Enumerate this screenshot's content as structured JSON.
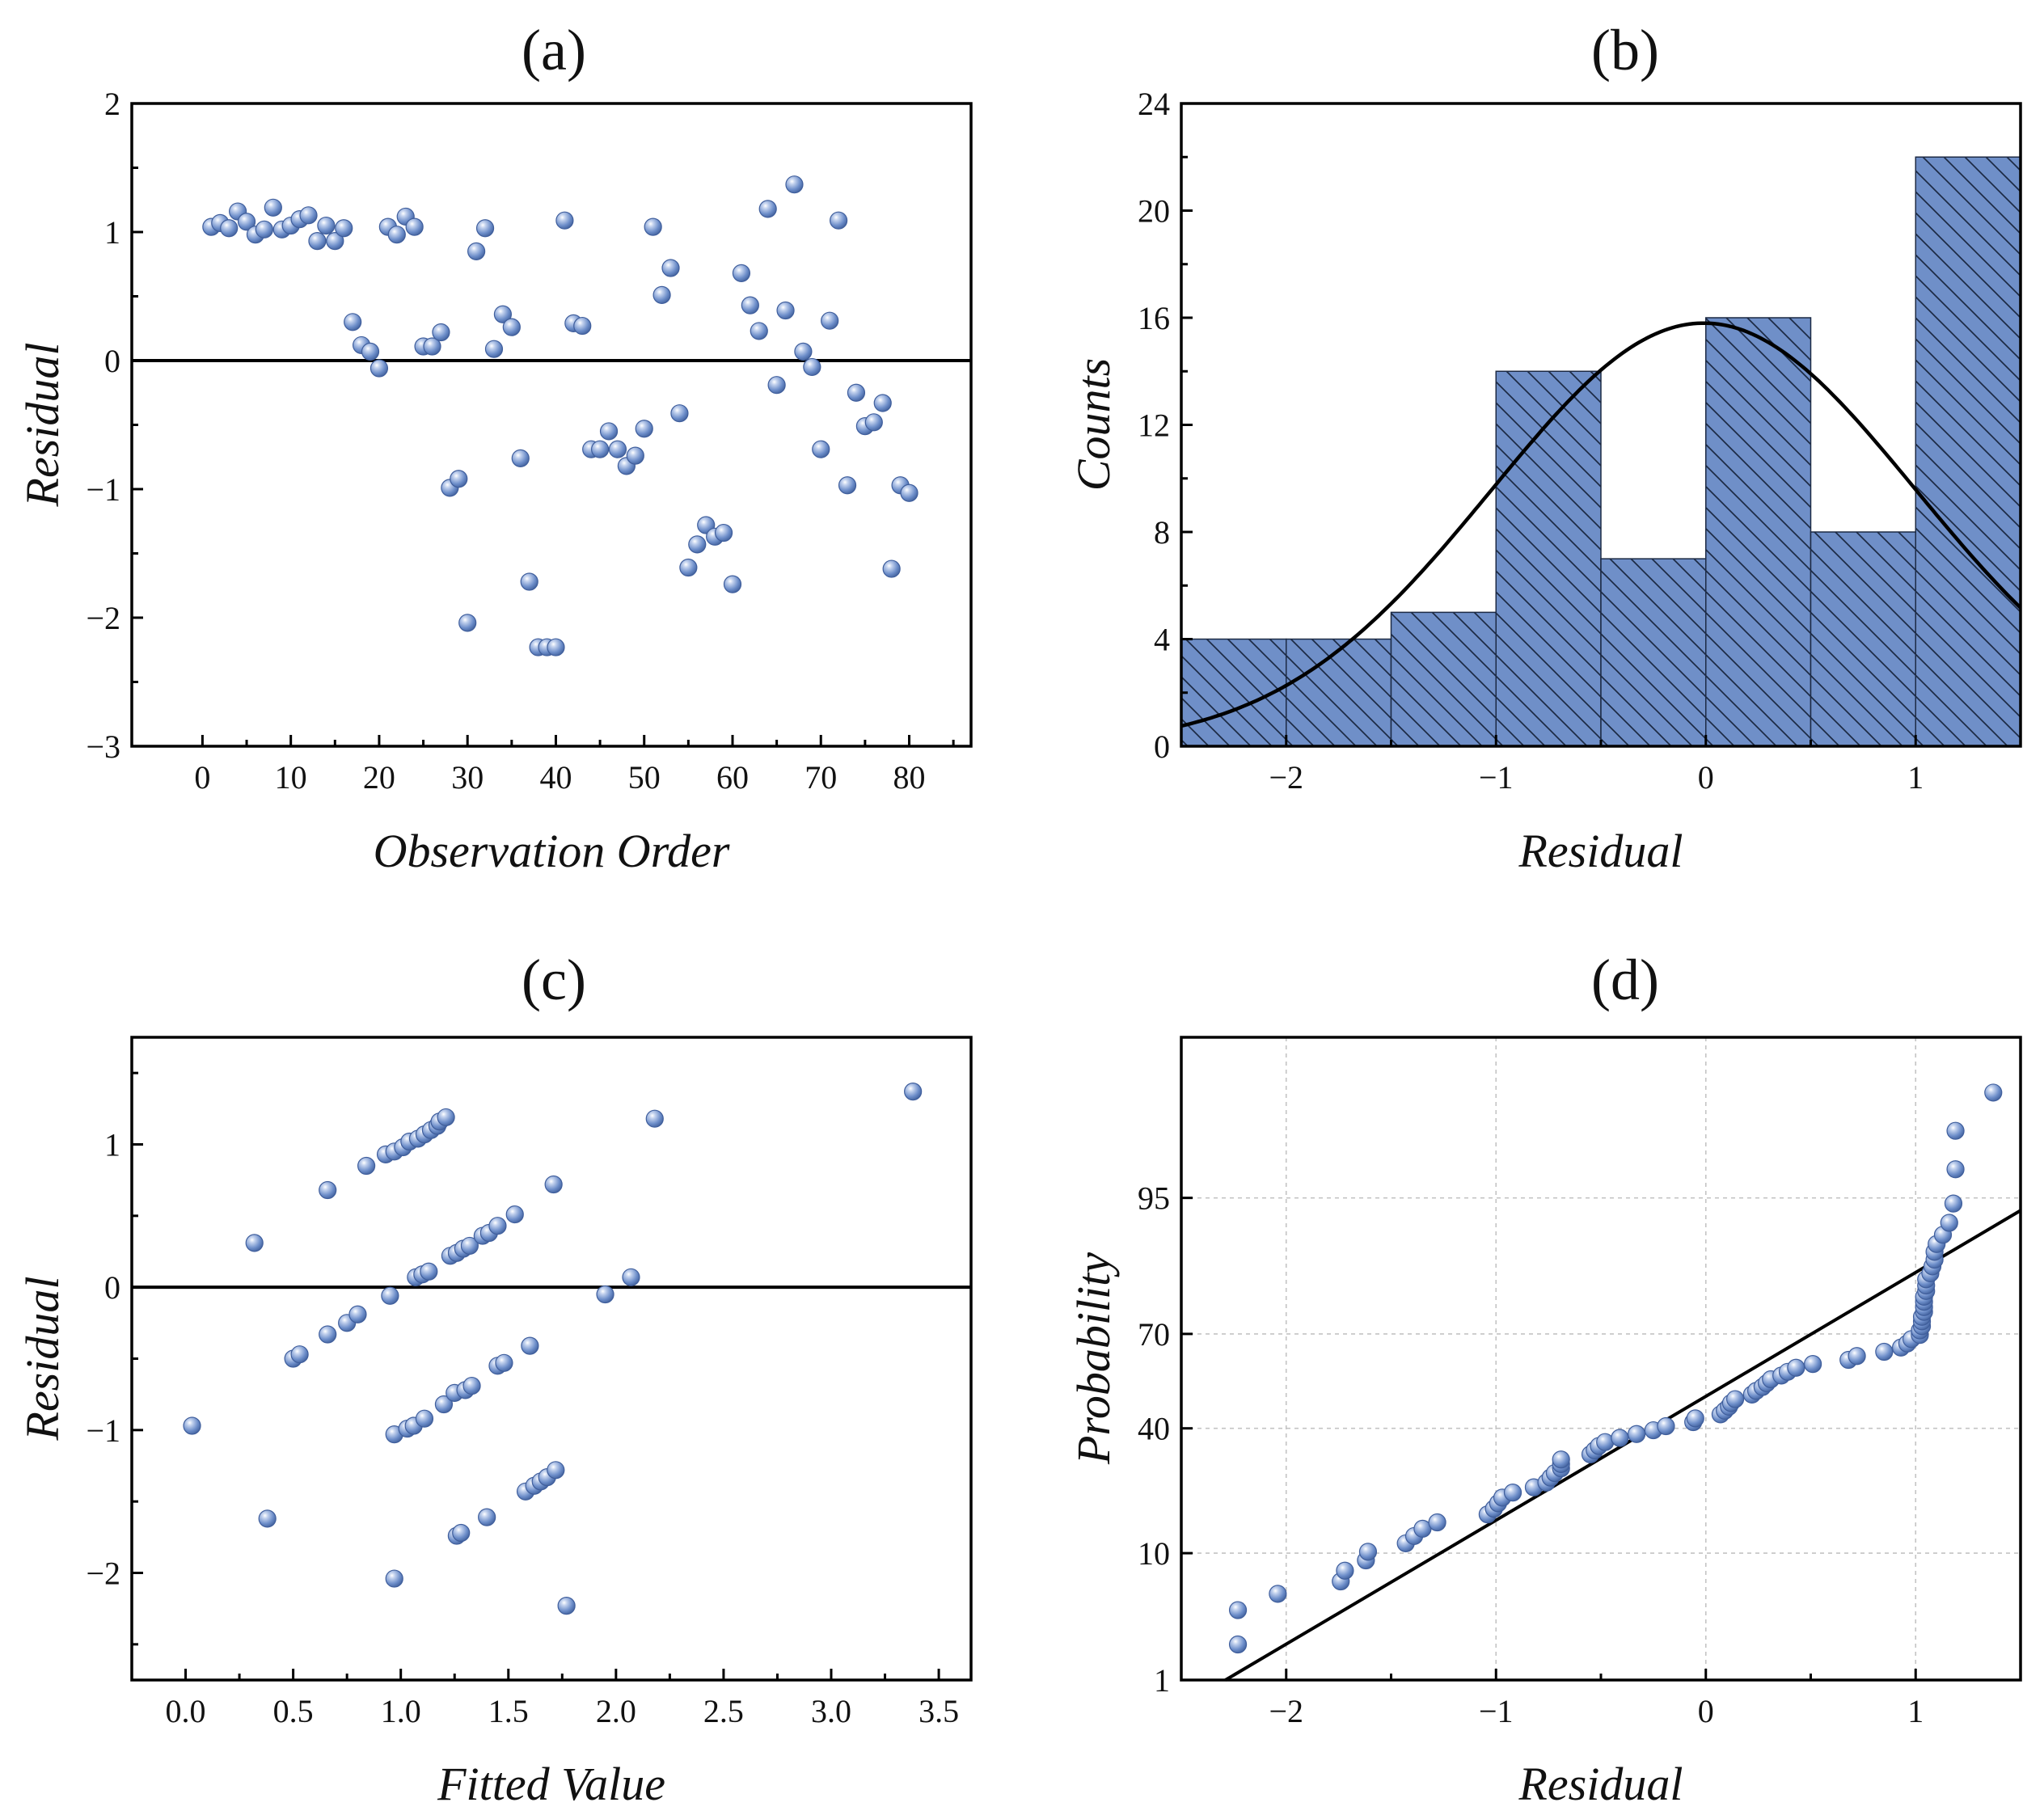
{
  "chart_data": [
    {
      "panel": "a",
      "type": "scatter",
      "title": "(a)",
      "xlabel": "Observation Order",
      "ylabel": "Residual",
      "xlim": [
        -8,
        87
      ],
      "ylim": [
        -3,
        2
      ],
      "xticks": [
        0,
        10,
        20,
        30,
        40,
        50,
        60,
        70,
        80
      ],
      "yticks": [
        -3,
        -2,
        -1,
        0,
        1,
        2
      ],
      "reference_line_y": 0,
      "points": [
        {
          "x": 1,
          "y": 1.04
        },
        {
          "x": 2,
          "y": 1.07
        },
        {
          "x": 3,
          "y": 1.03
        },
        {
          "x": 4,
          "y": 1.16
        },
        {
          "x": 5,
          "y": 1.08
        },
        {
          "x": 6,
          "y": 0.98
        },
        {
          "x": 7,
          "y": 1.02
        },
        {
          "x": 8,
          "y": 1.19
        },
        {
          "x": 9,
          "y": 1.02
        },
        {
          "x": 10,
          "y": 1.05
        },
        {
          "x": 11,
          "y": 1.1
        },
        {
          "x": 12,
          "y": 1.13
        },
        {
          "x": 13,
          "y": 0.93
        },
        {
          "x": 14,
          "y": 1.05
        },
        {
          "x": 15,
          "y": 0.93
        },
        {
          "x": 16,
          "y": 1.03
        },
        {
          "x": 17,
          "y": 0.3
        },
        {
          "x": 18,
          "y": 0.12
        },
        {
          "x": 19,
          "y": 0.07
        },
        {
          "x": 20,
          "y": -0.06
        },
        {
          "x": 21,
          "y": 1.04
        },
        {
          "x": 22,
          "y": 0.98
        },
        {
          "x": 23,
          "y": 1.12
        },
        {
          "x": 24,
          "y": 1.04
        },
        {
          "x": 25,
          "y": 0.11
        },
        {
          "x": 26,
          "y": 0.11
        },
        {
          "x": 27,
          "y": 0.22
        },
        {
          "x": 28,
          "y": -0.99
        },
        {
          "x": 29,
          "y": -0.92
        },
        {
          "x": 30,
          "y": -2.04
        },
        {
          "x": 31,
          "y": 0.85
        },
        {
          "x": 32,
          "y": 1.03
        },
        {
          "x": 33,
          "y": 0.09
        },
        {
          "x": 34,
          "y": 0.36
        },
        {
          "x": 35,
          "y": 0.26
        },
        {
          "x": 36,
          "y": -0.76
        },
        {
          "x": 37,
          "y": -1.72
        },
        {
          "x": 38,
          "y": -2.23
        },
        {
          "x": 39,
          "y": -2.23
        },
        {
          "x": 40,
          "y": -2.23
        },
        {
          "x": 41,
          "y": 1.09
        },
        {
          "x": 42,
          "y": 0.29
        },
        {
          "x": 43,
          "y": 0.27
        },
        {
          "x": 44,
          "y": -0.69
        },
        {
          "x": 45,
          "y": -0.69
        },
        {
          "x": 46,
          "y": -0.55
        },
        {
          "x": 47,
          "y": -0.69
        },
        {
          "x": 48,
          "y": -0.82
        },
        {
          "x": 49,
          "y": -0.74
        },
        {
          "x": 50,
          "y": -0.53
        },
        {
          "x": 51,
          "y": 1.04
        },
        {
          "x": 52,
          "y": 0.51
        },
        {
          "x": 53,
          "y": 0.72
        },
        {
          "x": 54,
          "y": -0.41
        },
        {
          "x": 55,
          "y": -1.61
        },
        {
          "x": 56,
          "y": -1.43
        },
        {
          "x": 57,
          "y": -1.28
        },
        {
          "x": 58,
          "y": -1.37
        },
        {
          "x": 59,
          "y": -1.34
        },
        {
          "x": 60,
          "y": -1.74
        },
        {
          "x": 61,
          "y": 0.68
        },
        {
          "x": 62,
          "y": 0.43
        },
        {
          "x": 63,
          "y": 0.23
        },
        {
          "x": 64,
          "y": 1.18
        },
        {
          "x": 65,
          "y": -0.19
        },
        {
          "x": 66,
          "y": 0.39
        },
        {
          "x": 67,
          "y": 1.37
        },
        {
          "x": 68,
          "y": 0.07
        },
        {
          "x": 69,
          "y": -0.05
        },
        {
          "x": 70,
          "y": -0.69
        },
        {
          "x": 71,
          "y": 0.31
        },
        {
          "x": 72,
          "y": 1.09
        },
        {
          "x": 73,
          "y": -0.97
        },
        {
          "x": 74,
          "y": -0.25
        },
        {
          "x": 75,
          "y": -0.51
        },
        {
          "x": 76,
          "y": -0.48
        },
        {
          "x": 77,
          "y": -0.33
        },
        {
          "x": 78,
          "y": -1.62
        },
        {
          "x": 79,
          "y": -0.97
        },
        {
          "x": 80,
          "y": -1.03
        }
      ]
    },
    {
      "panel": "b",
      "type": "bar",
      "subtype": "histogram",
      "title": "(b)",
      "xlabel": "Residual",
      "ylabel": "Counts",
      "xlim": [
        -2.5,
        1.5
      ],
      "ylim": [
        0,
        24
      ],
      "xticks": [
        -2,
        -1,
        0,
        1
      ],
      "yticks": [
        0,
        4,
        8,
        12,
        16,
        20,
        24
      ],
      "bins": [
        {
          "start": -2.5,
          "end": -2.0,
          "count": 4
        },
        {
          "start": -2.0,
          "end": -1.5,
          "count": 4
        },
        {
          "start": -1.5,
          "end": -1.0,
          "count": 5
        },
        {
          "start": -1.0,
          "end": -0.5,
          "count": 14
        },
        {
          "start": -0.5,
          "end": 0.0,
          "count": 7
        },
        {
          "start": 0.0,
          "end": 0.5,
          "count": 16
        },
        {
          "start": 0.5,
          "end": 1.0,
          "count": 8
        },
        {
          "start": 1.0,
          "end": 1.5,
          "count": 22
        }
      ],
      "normal_curve": {
        "mean": -0.01,
        "sd": 1.01,
        "peak": 15.8
      }
    },
    {
      "panel": "c",
      "type": "scatter",
      "title": "(c)",
      "xlabel": "Fitted Value",
      "ylabel": "Residual",
      "xlim": [
        -0.25,
        3.65
      ],
      "ylim": [
        -2.75,
        1.75
      ],
      "xticks": [
        0.0,
        0.5,
        1.0,
        1.5,
        2.0,
        2.5,
        3.0,
        3.5
      ],
      "xtick_labels": [
        "0.0",
        "0.5",
        "1.0",
        "1.5",
        "2.0",
        "2.5",
        "3.0",
        "3.5"
      ],
      "yticks": [
        -2,
        -1,
        0,
        1
      ],
      "reference_line_y": 0,
      "points": [
        {
          "x": 0.03,
          "y": -0.97
        },
        {
          "x": 0.32,
          "y": 0.31
        },
        {
          "x": 0.38,
          "y": -1.62
        },
        {
          "x": 0.5,
          "y": -0.5
        },
        {
          "x": 0.53,
          "y": -0.47
        },
        {
          "x": 0.66,
          "y": 0.68
        },
        {
          "x": 0.66,
          "y": -0.33
        },
        {
          "x": 0.75,
          "y": -0.25
        },
        {
          "x": 0.8,
          "y": -0.19
        },
        {
          "x": 0.84,
          "y": 0.85
        },
        {
          "x": 0.93,
          "y": 0.93
        },
        {
          "x": 0.95,
          "y": -0.06
        },
        {
          "x": 0.97,
          "y": 0.95
        },
        {
          "x": 0.97,
          "y": -1.03
        },
        {
          "x": 0.97,
          "y": -2.04
        },
        {
          "x": 1.01,
          "y": 0.98
        },
        {
          "x": 1.03,
          "y": -0.99
        },
        {
          "x": 1.04,
          "y": 1.02
        },
        {
          "x": 1.06,
          "y": -0.97
        },
        {
          "x": 1.07,
          "y": 0.07
        },
        {
          "x": 1.08,
          "y": 1.04
        },
        {
          "x": 1.1,
          "y": 0.09
        },
        {
          "x": 1.11,
          "y": 1.07
        },
        {
          "x": 1.11,
          "y": -0.92
        },
        {
          "x": 1.13,
          "y": 0.11
        },
        {
          "x": 1.14,
          "y": 1.1
        },
        {
          "x": 1.17,
          "y": 1.13
        },
        {
          "x": 1.18,
          "y": 1.16
        },
        {
          "x": 1.2,
          "y": -0.82
        },
        {
          "x": 1.21,
          "y": 1.19
        },
        {
          "x": 1.23,
          "y": 0.22
        },
        {
          "x": 1.25,
          "y": -0.74
        },
        {
          "x": 1.26,
          "y": 0.24
        },
        {
          "x": 1.26,
          "y": -1.74
        },
        {
          "x": 1.28,
          "y": -1.72
        },
        {
          "x": 1.29,
          "y": 0.27
        },
        {
          "x": 1.3,
          "y": -0.72
        },
        {
          "x": 1.32,
          "y": 0.29
        },
        {
          "x": 1.33,
          "y": -0.69
        },
        {
          "x": 1.38,
          "y": 0.36
        },
        {
          "x": 1.4,
          "y": -1.61
        },
        {
          "x": 1.41,
          "y": 0.38
        },
        {
          "x": 1.45,
          "y": 0.43
        },
        {
          "x": 1.45,
          "y": -0.55
        },
        {
          "x": 1.48,
          "y": -0.53
        },
        {
          "x": 1.53,
          "y": 0.51
        },
        {
          "x": 1.58,
          "y": -1.43
        },
        {
          "x": 1.6,
          "y": -0.41
        },
        {
          "x": 1.62,
          "y": -1.39
        },
        {
          "x": 1.65,
          "y": -1.36
        },
        {
          "x": 1.68,
          "y": -1.33
        },
        {
          "x": 1.71,
          "y": 0.72
        },
        {
          "x": 1.72,
          "y": -1.28
        },
        {
          "x": 1.77,
          "y": -2.23
        },
        {
          "x": 1.95,
          "y": -0.05
        },
        {
          "x": 2.07,
          "y": 0.07
        },
        {
          "x": 2.18,
          "y": 1.18
        },
        {
          "x": 3.38,
          "y": 1.37
        }
      ]
    },
    {
      "panel": "d",
      "type": "scatter",
      "subtype": "normal-probability-plot",
      "title": "(d)",
      "xlabel": "Residual",
      "ylabel": "Probability",
      "xlim": [
        -2.5,
        1.5
      ],
      "ylim_probability_percent": [
        1,
        99.85
      ],
      "xticks": [
        -2,
        -1,
        0,
        1
      ],
      "yticks_percent": [
        1,
        10,
        40,
        70,
        95
      ],
      "grid": true,
      "fit_line": {
        "mean": -0.01,
        "sd": 0.98
      },
      "points": [
        {
          "x": -2.23,
          "p": 2.1
        },
        {
          "x": -2.23,
          "p": 4.0
        },
        {
          "x": -2.04,
          "p": 5.3
        },
        {
          "x": -1.74,
          "p": 6.5
        },
        {
          "x": -1.72,
          "p": 7.7
        },
        {
          "x": -1.62,
          "p": 9.0
        },
        {
          "x": -1.61,
          "p": 10.2
        },
        {
          "x": -1.43,
          "p": 11.5
        },
        {
          "x": -1.39,
          "p": 12.7
        },
        {
          "x": -1.35,
          "p": 14.0
        },
        {
          "x": -1.28,
          "p": 15.2
        },
        {
          "x": -1.04,
          "p": 16.8
        },
        {
          "x": -1.01,
          "p": 18.0
        },
        {
          "x": -0.99,
          "p": 19.2
        },
        {
          "x": -0.97,
          "p": 20.5
        },
        {
          "x": -0.92,
          "p": 21.7
        },
        {
          "x": -0.82,
          "p": 23.0
        },
        {
          "x": -0.76,
          "p": 24.2
        },
        {
          "x": -0.74,
          "p": 25.5
        },
        {
          "x": -0.72,
          "p": 26.7
        },
        {
          "x": -0.69,
          "p": 28.0
        },
        {
          "x": -0.69,
          "p": 29.2
        },
        {
          "x": -0.69,
          "p": 30.5
        },
        {
          "x": -0.55,
          "p": 32.0
        },
        {
          "x": -0.53,
          "p": 33.2
        },
        {
          "x": -0.51,
          "p": 34.5
        },
        {
          "x": -0.48,
          "p": 35.7
        },
        {
          "x": -0.41,
          "p": 37.0
        },
        {
          "x": -0.33,
          "p": 38.2
        },
        {
          "x": -0.25,
          "p": 39.4
        },
        {
          "x": -0.19,
          "p": 40.7
        },
        {
          "x": -0.06,
          "p": 42.0
        },
        {
          "x": -0.05,
          "p": 43.2
        },
        {
          "x": 0.07,
          "p": 44.5
        },
        {
          "x": 0.09,
          "p": 45.7
        },
        {
          "x": 0.11,
          "p": 47.0
        },
        {
          "x": 0.12,
          "p": 48.2
        },
        {
          "x": 0.14,
          "p": 49.5
        },
        {
          "x": 0.22,
          "p": 51.0
        },
        {
          "x": 0.24,
          "p": 52.2
        },
        {
          "x": 0.27,
          "p": 53.5
        },
        {
          "x": 0.29,
          "p": 54.7
        },
        {
          "x": 0.31,
          "p": 56.0
        },
        {
          "x": 0.36,
          "p": 57.2
        },
        {
          "x": 0.39,
          "p": 58.4
        },
        {
          "x": 0.43,
          "p": 59.7
        },
        {
          "x": 0.51,
          "p": 60.9
        },
        {
          "x": 0.68,
          "p": 62.2
        },
        {
          "x": 0.72,
          "p": 63.4
        },
        {
          "x": 0.85,
          "p": 64.7
        },
        {
          "x": 0.93,
          "p": 66.0
        },
        {
          "x": 0.96,
          "p": 67.2
        },
        {
          "x": 0.98,
          "p": 68.5
        },
        {
          "x": 1.02,
          "p": 69.7
        },
        {
          "x": 1.02,
          "p": 71.0
        },
        {
          "x": 1.03,
          "p": 72.2
        },
        {
          "x": 1.03,
          "p": 73.5
        },
        {
          "x": 1.03,
          "p": 74.7
        },
        {
          "x": 1.04,
          "p": 76.0
        },
        {
          "x": 1.04,
          "p": 77.2
        },
        {
          "x": 1.04,
          "p": 78.5
        },
        {
          "x": 1.04,
          "p": 79.7
        },
        {
          "x": 1.05,
          "p": 81.0
        },
        {
          "x": 1.05,
          "p": 82.2
        },
        {
          "x": 1.05,
          "p": 83.5
        },
        {
          "x": 1.07,
          "p": 84.7
        },
        {
          "x": 1.08,
          "p": 86.0
        },
        {
          "x": 1.09,
          "p": 87.2
        },
        {
          "x": 1.09,
          "p": 88.5
        },
        {
          "x": 1.1,
          "p": 89.7
        },
        {
          "x": 1.13,
          "p": 91.0
        },
        {
          "x": 1.16,
          "p": 92.5
        },
        {
          "x": 1.18,
          "p": 94.5
        },
        {
          "x": 1.19,
          "p": 97.0
        },
        {
          "x": 1.19,
          "p": 98.6
        },
        {
          "x": 1.37,
          "p": 99.4
        }
      ]
    }
  ]
}
